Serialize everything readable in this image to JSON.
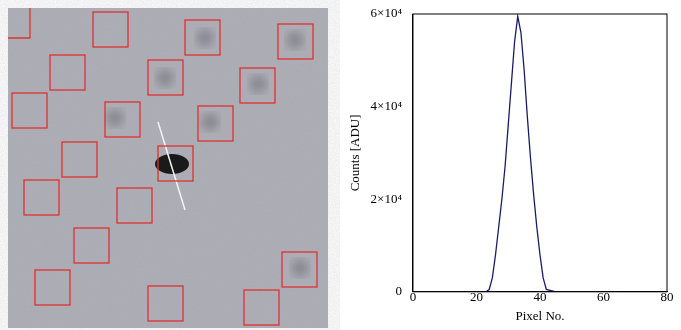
{
  "chart_data": {
    "type": "line",
    "x_label": "Pixel No.",
    "y_label": "Counts [ADU]",
    "x": [
      0,
      5,
      10,
      15,
      20,
      23,
      24,
      25,
      26,
      27,
      28,
      29,
      30,
      31,
      32,
      33,
      34,
      35,
      36,
      37,
      38,
      39,
      40,
      41,
      42,
      45,
      50,
      55,
      60,
      65
    ],
    "values": [
      0,
      0,
      0,
      0,
      0,
      0,
      500,
      3000,
      8000,
      14000,
      20000,
      27000,
      36000,
      45000,
      54000,
      59500,
      56000,
      48000,
      38000,
      29000,
      21000,
      14000,
      8000,
      3000,
      500,
      0,
      0,
      0,
      0,
      0
    ],
    "color": "#1a1a66",
    "xlim": [
      0,
      80
    ],
    "xticks": [
      0,
      20,
      40,
      60,
      80
    ],
    "ylim": [
      0,
      60000
    ],
    "yticks": [
      0,
      {
        "value": 20000,
        "label": "2×10⁴"
      },
      {
        "value": 40000,
        "label": "4×10⁴"
      },
      {
        "value": 60000,
        "label": "6×10⁴"
      }
    ],
    "grid": false
  }
}
